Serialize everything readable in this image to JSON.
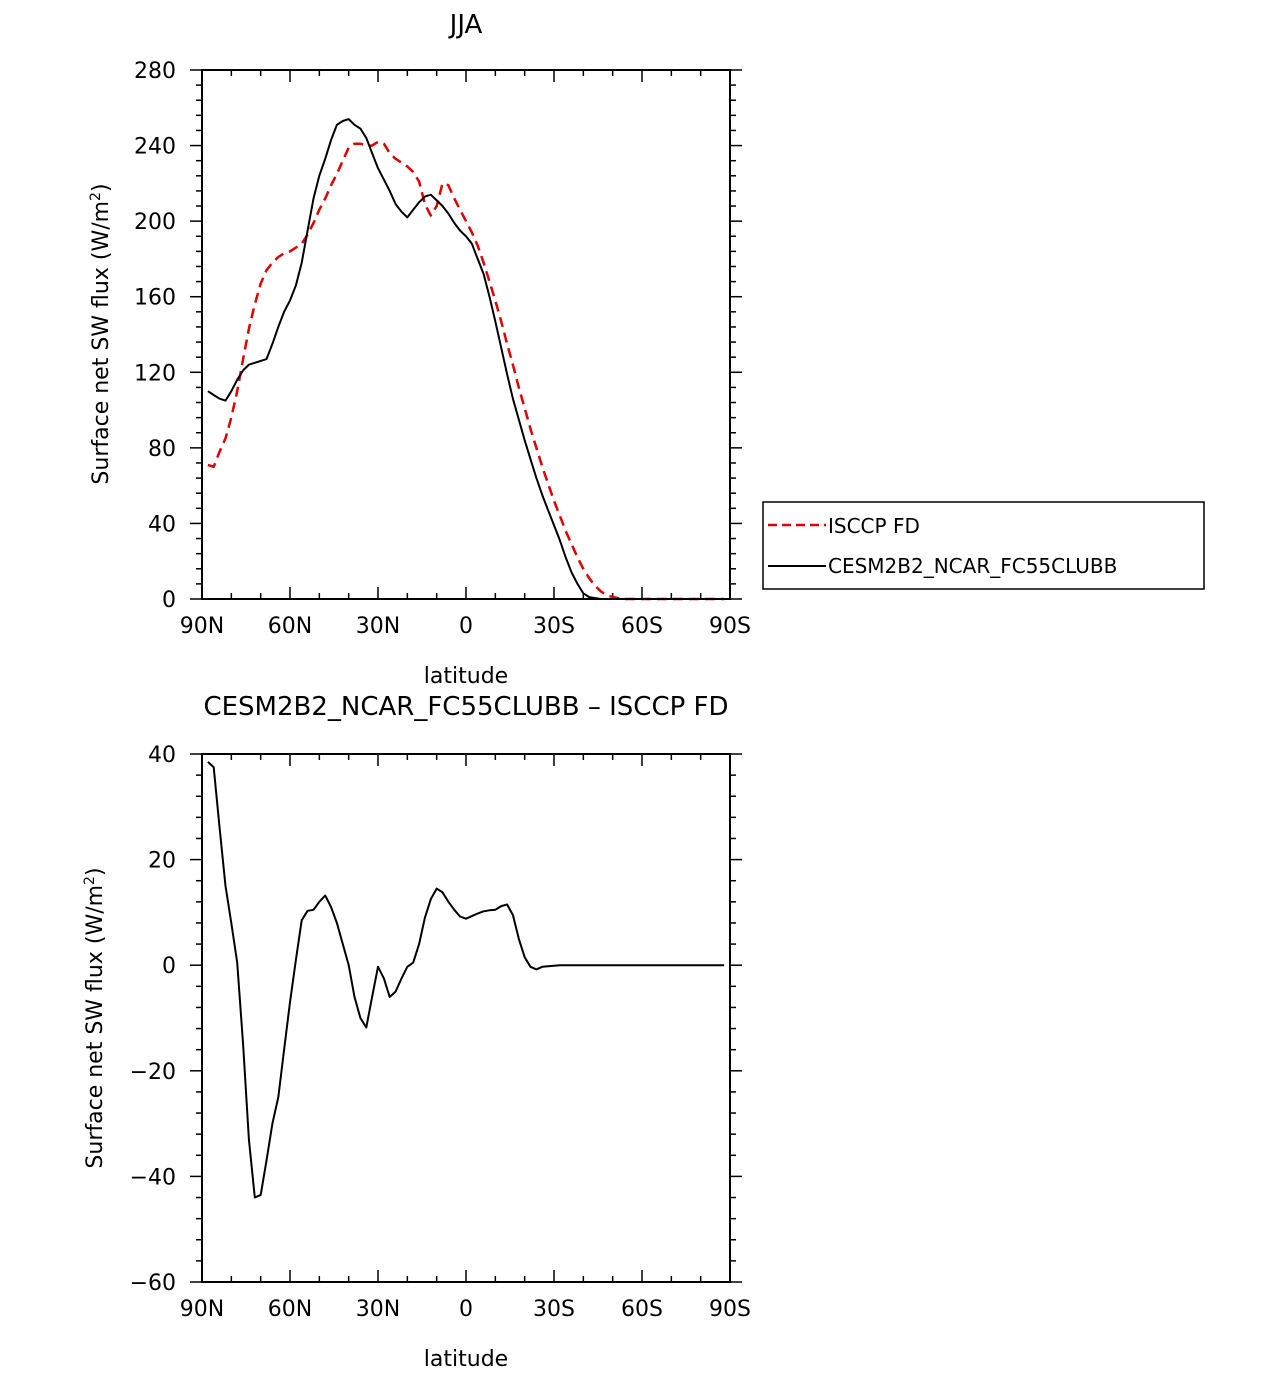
{
  "chart_data": [
    {
      "type": "line",
      "title": "JJA",
      "xlabel": "latitude",
      "ylabel": "Surface net SW flux (W/m",
      "ylabel_sup": "2",
      "ylabel_end": ")",
      "xlim": [
        90,
        -90
      ],
      "ylim": [
        0,
        280
      ],
      "xticks": [
        90,
        60,
        30,
        0,
        -30,
        -60,
        -90
      ],
      "xtick_labels": [
        "90N",
        "60N",
        "30N",
        "0",
        "30S",
        "60S",
        "90S"
      ],
      "yticks": [
        0,
        40,
        80,
        120,
        160,
        200,
        240,
        280
      ],
      "ytick_labels": [
        "0",
        "40",
        "80",
        "120",
        "160",
        "200",
        "240",
        "280"
      ],
      "legend_position": "right",
      "series": [
        {
          "name": "ISCCP FD",
          "color": "#e00000",
          "style": "dashed",
          "x": [
            88,
            86,
            84,
            82,
            80,
            78,
            76,
            74,
            72,
            70,
            68,
            66,
            64,
            62,
            60,
            58,
            56,
            54,
            52,
            50,
            48,
            46,
            44,
            42,
            40,
            38,
            36,
            34,
            32,
            30,
            28,
            26,
            24,
            22,
            20,
            18,
            16,
            14,
            12,
            10,
            8,
            6,
            4,
            2,
            0,
            -2,
            -4,
            -6,
            -8,
            -10,
            -12,
            -14,
            -16,
            -18,
            -20,
            -22,
            -24,
            -26,
            -28,
            -30,
            -32,
            -34,
            -36,
            -38,
            -40,
            -42,
            -44,
            -46,
            -48,
            -50,
            -52,
            -54,
            -56,
            -58,
            -60,
            -62,
            -64,
            -66,
            -68,
            -70,
            -72,
            -74,
            -76,
            -78,
            -80,
            -82,
            -84,
            -86,
            -88
          ],
          "y": [
            71,
            70,
            78,
            85,
            96,
            110,
            127,
            143,
            156,
            167,
            174,
            178,
            181,
            183,
            184,
            186,
            188,
            193,
            199,
            206,
            212,
            219,
            225,
            232,
            239,
            241,
            241,
            240,
            240,
            242,
            241,
            236,
            233,
            231,
            229,
            226,
            221,
            209,
            203,
            208,
            220,
            219,
            212,
            206,
            200,
            194,
            187,
            178,
            168,
            158,
            147,
            135,
            124,
            112,
            101,
            90,
            80,
            70,
            61,
            52,
            44,
            36,
            29,
            22,
            16,
            11,
            7,
            4,
            2,
            1,
            0.5,
            0,
            0,
            0,
            0,
            0,
            0,
            0,
            0,
            0,
            0,
            0,
            0,
            0,
            0,
            0,
            0,
            0,
            0
          ]
        },
        {
          "name": "CESM2B2_NCAR_FC55CLUBB",
          "color": "#000000",
          "style": "solid",
          "x": [
            88,
            86,
            84,
            82,
            80,
            78,
            76,
            74,
            72,
            70,
            68,
            66,
            64,
            62,
            60,
            58,
            56,
            54,
            52,
            50,
            48,
            46,
            44,
            42,
            40,
            38,
            36,
            34,
            32,
            30,
            28,
            26,
            24,
            22,
            20,
            18,
            16,
            14,
            12,
            10,
            8,
            6,
            4,
            2,
            0,
            -2,
            -4,
            -6,
            -8,
            -10,
            -12,
            -14,
            -16,
            -18,
            -20,
            -22,
            -24,
            -26,
            -28,
            -30,
            -32,
            -34,
            -36,
            -38,
            -40,
            -42,
            -44,
            -46,
            -48,
            -50,
            -52,
            -54,
            -56,
            -58,
            -60,
            -62,
            -64,
            -66,
            -68,
            -70,
            -72,
            -74,
            -76,
            -78,
            -80,
            -82,
            -84,
            -86,
            -88
          ],
          "y": [
            110,
            108,
            106,
            105,
            110,
            116,
            121,
            124,
            125,
            126,
            127,
            135,
            144,
            152,
            158,
            166,
            178,
            195,
            212,
            224,
            233,
            243,
            251,
            253,
            254,
            251,
            249,
            244,
            236,
            228,
            222,
            216,
            209,
            205,
            202,
            206,
            210,
            213,
            214,
            211,
            208,
            204,
            199,
            195,
            192,
            188,
            180,
            172,
            160,
            147,
            133,
            119,
            106,
            95,
            84,
            74,
            64,
            55,
            47,
            39,
            31,
            22,
            14,
            8,
            3,
            1,
            0.5,
            0,
            0,
            0,
            0,
            0,
            0,
            0,
            0,
            0,
            0,
            0,
            0,
            0,
            0,
            0,
            0,
            0,
            0,
            0,
            0,
            0,
            0
          ]
        }
      ]
    },
    {
      "type": "line",
      "title": "CESM2B2_NCAR_FC55CLUBB – ISCCP FD",
      "xlabel": "latitude",
      "ylabel": "Surface net SW flux (W/m",
      "ylabel_sup": "2",
      "ylabel_end": ")",
      "xlim": [
        90,
        -90
      ],
      "ylim": [
        -60,
        40
      ],
      "xticks": [
        90,
        60,
        30,
        0,
        -30,
        -60,
        -90
      ],
      "xtick_labels": [
        "90N",
        "60N",
        "30N",
        "0",
        "30S",
        "60S",
        "90S"
      ],
      "yticks": [
        -60,
        -40,
        -20,
        0,
        20,
        40
      ],
      "ytick_labels": [
        "−60",
        "−40",
        "−20",
        "0",
        "20",
        "40"
      ],
      "series": [
        {
          "color": "#000000",
          "style": "solid",
          "x": [
            88,
            86,
            84,
            82,
            80,
            78,
            76,
            74,
            72,
            70,
            68,
            66,
            64,
            62,
            60,
            58,
            56,
            54,
            52,
            50,
            48,
            46,
            44,
            42,
            40,
            38,
            36,
            34,
            32,
            30,
            28,
            26,
            24,
            22,
            20,
            18,
            16,
            14,
            12,
            10,
            8,
            6,
            4,
            2,
            0,
            -2,
            -4,
            -6,
            -8,
            -10,
            -12,
            -14,
            -16,
            -18,
            -20,
            -22,
            -24,
            -26,
            -28,
            -30,
            -32,
            -34,
            -36,
            -38,
            -40,
            -42,
            -44,
            -46,
            -48,
            -50,
            -52,
            -54,
            -56,
            -58,
            -60,
            -62,
            -64,
            -66,
            -68,
            -70,
            -72,
            -74,
            -76,
            -78,
            -80,
            -82,
            -84,
            -86,
            -88
          ],
          "y": [
            38.5,
            37.5,
            26,
            15,
            8,
            0.5,
            -15,
            -33,
            -44,
            -43.5,
            -37,
            -30,
            -25,
            -16,
            -7,
            1,
            8.5,
            10.3,
            10.5,
            12,
            13.2,
            11,
            8,
            4,
            0,
            -6,
            -10,
            -11.8,
            -6,
            -0.3,
            -2.5,
            -6,
            -5,
            -2.5,
            -0.3,
            0.5,
            4,
            9,
            12.5,
            14.5,
            13.8,
            12,
            10.5,
            9.2,
            8.8,
            9.3,
            9.8,
            10.2,
            10.4,
            10.5,
            11.2,
            11.5,
            9.5,
            5,
            1.5,
            -0.3,
            -0.8,
            -0.3,
            -0.2,
            -0.1,
            0,
            0,
            0,
            0,
            0,
            0,
            0,
            0,
            0,
            0,
            0,
            0,
            0,
            0,
            0,
            0,
            0,
            0,
            0,
            0,
            0,
            0,
            0,
            0,
            0,
            0,
            0,
            0,
            0
          ]
        }
      ]
    }
  ]
}
